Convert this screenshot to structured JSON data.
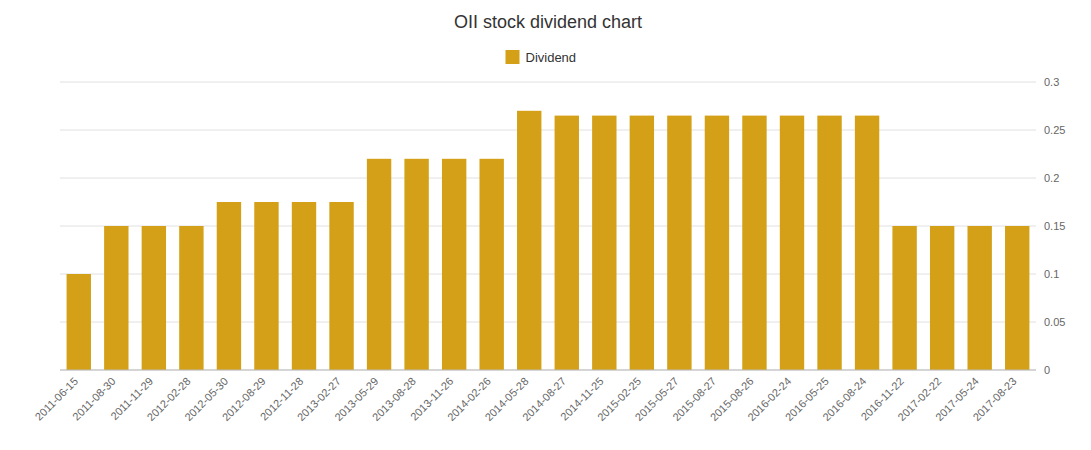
{
  "chart_data": {
    "type": "bar",
    "title": "OII stock dividend chart",
    "categories": [
      "2011-06-15",
      "2011-08-30",
      "2011-11-29",
      "2012-02-28",
      "2012-05-30",
      "2012-08-29",
      "2012-11-28",
      "2013-02-27",
      "2013-05-29",
      "2013-08-28",
      "2013-11-26",
      "2014-02-26",
      "2014-05-28",
      "2014-08-27",
      "2014-11-25",
      "2015-02-25",
      "2015-05-27",
      "2015-08-27",
      "2015-08-26",
      "2016-02-24",
      "2016-05-25",
      "2016-08-24",
      "2016-11-22",
      "2017-02-22",
      "2017-05-24",
      "2017-08-23"
    ],
    "series": [
      {
        "name": "Dividend",
        "color": "#D4A017",
        "values": [
          0.1,
          0.15,
          0.15,
          0.15,
          0.175,
          0.175,
          0.175,
          0.175,
          0.22,
          0.22,
          0.22,
          0.22,
          0.27,
          0.265,
          0.265,
          0.265,
          0.265,
          0.265,
          0.265,
          0.265,
          0.265,
          0.265,
          0.15,
          0.15,
          0.15,
          0.15
        ]
      }
    ],
    "ylim": [
      0,
      0.3
    ],
    "yticks": [
      0,
      0.05,
      0.1,
      0.15,
      0.2,
      0.25,
      0.3
    ],
    "grid": true,
    "legend": "top"
  }
}
